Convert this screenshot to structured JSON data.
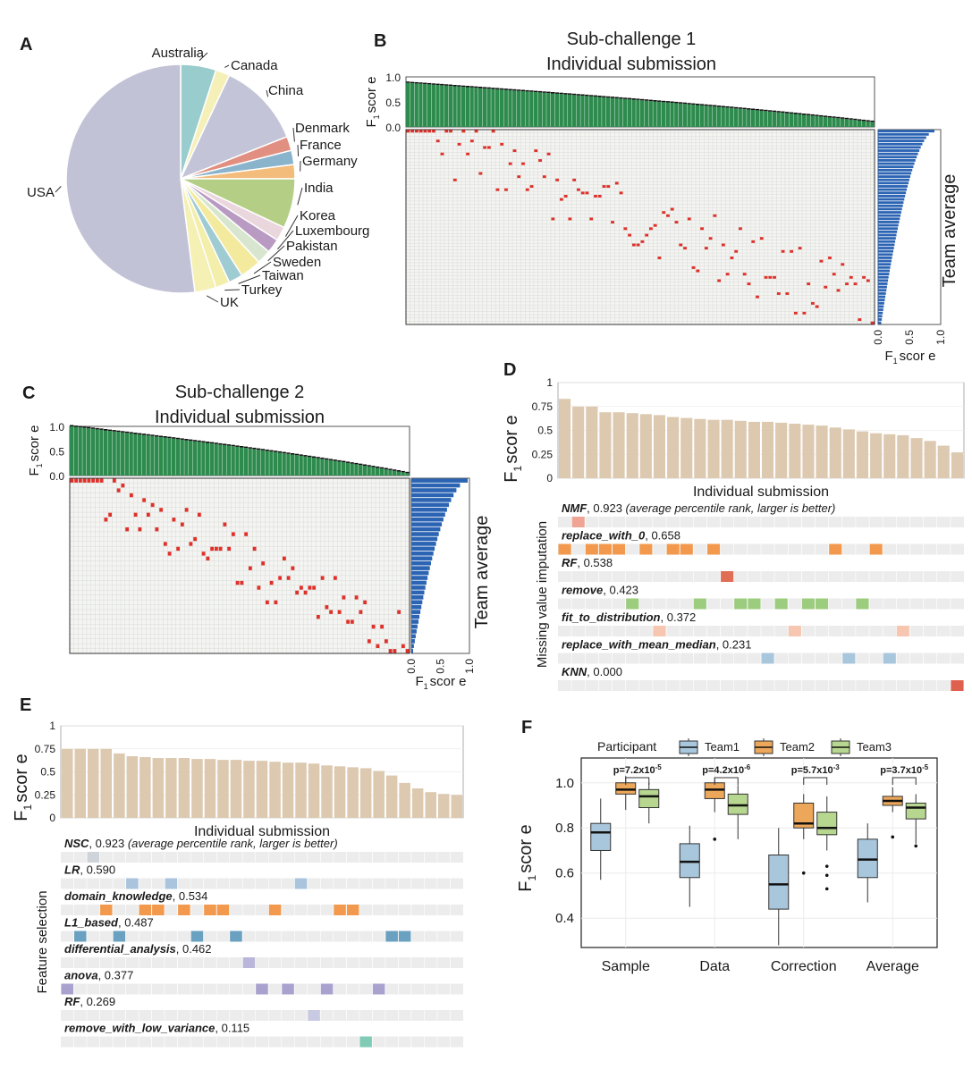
{
  "chart_data": [
    {
      "panel": "A",
      "type": "pie",
      "labels": [
        "Australia",
        "Canada",
        "China",
        "Denmark",
        "France",
        "Germany",
        "India",
        "Korea",
        "Luxembourg",
        "Pakistan",
        "Sweden",
        "Taiwan",
        "Turkey",
        "UK",
        "USA"
      ],
      "values": [
        5,
        2,
        12,
        2,
        2,
        2,
        7,
        2,
        2,
        2,
        3,
        2,
        2,
        3,
        52
      ],
      "colors": [
        "#99cccc",
        "#f5efb8",
        "#c3c4d7",
        "#e18f80",
        "#8ab3cc",
        "#f3bc7a",
        "#b4cf85",
        "#ead7dd",
        "#b89ac2",
        "#d8e6cf",
        "#f3ea9e",
        "#9fcbd2",
        "#f3eeaa",
        "#f5f0b4",
        "#c2c2d6"
      ]
    },
    {
      "panel": "B",
      "type": "heatmap",
      "title": [
        "Sub-challenge 1",
        "Individual submission"
      ],
      "ylabel": "F",
      "ylabel_sub": "1",
      "ylabel_rest": "scor e",
      "top_ticks": [
        "0.0",
        "0.5",
        "1.0"
      ],
      "side_ticks": [
        "0.0",
        "0.5",
        "1.0"
      ],
      "side_label": "Team average",
      "xlabel": "F",
      "xlabel_sub": "1",
      "xlabel_rest": "scor e",
      "n_submissions": 110,
      "n_teams": 60,
      "bar_range": [
        0.88,
        0.1
      ],
      "team_range": [
        0.9,
        0.05
      ],
      "bar_color": "#2e8b4e",
      "team_color": "#2c64b4",
      "dot_color": "#e0302a"
    },
    {
      "panel": "C",
      "type": "heatmap",
      "title": [
        "Sub-challenge 2",
        "Individual submission"
      ],
      "ylabel": "F",
      "ylabel_sub": "1",
      "ylabel_rest": "scor e",
      "top_ticks": [
        "0.0",
        "0.5",
        "1.0"
      ],
      "side_ticks": [
        "0.0",
        "0.5",
        "1.0"
      ],
      "side_label": "Team average",
      "xlabel": "F",
      "xlabel_sub": "1",
      "xlabel_rest": "scor e",
      "n_submissions": 80,
      "n_teams": 36,
      "bar_range": [
        1.0,
        0.05
      ],
      "team_range": [
        0.97,
        0.03
      ],
      "bar_color": "#2e8b4e",
      "team_color": "#2c64b4",
      "dot_color": "#e0302a"
    },
    {
      "panel": "D",
      "type": "bar",
      "ylabel": "F",
      "ylabel_sub": "1",
      "ylabel_rest": "scor e",
      "xlabel": "Individual submission",
      "ylim": [
        0,
        1
      ],
      "yticks": [
        "0",
        "0.25",
        "0.5",
        "0.75",
        "1"
      ],
      "values": [
        0.83,
        0.75,
        0.75,
        0.69,
        0.69,
        0.68,
        0.67,
        0.66,
        0.64,
        0.63,
        0.62,
        0.61,
        0.61,
        0.6,
        0.59,
        0.59,
        0.58,
        0.57,
        0.56,
        0.55,
        0.53,
        0.51,
        0.49,
        0.47,
        0.46,
        0.45,
        0.42,
        0.39,
        0.34,
        0.27
      ],
      "bar_color": "#dcc9b0",
      "group_label": "Missing value imputation",
      "methods": [
        {
          "name": "NMF",
          "score": "0.923",
          "note": " (average percentile rank, larger is better)",
          "color": "#f0a494",
          "cells": [
            1
          ]
        },
        {
          "name": "replace_with_0",
          "score": "0.658",
          "note": "",
          "color": "#f2994d",
          "cells": [
            0,
            2,
            3,
            4,
            6,
            8,
            9,
            11,
            20,
            23
          ]
        },
        {
          "name": "RF",
          "score": "0.538",
          "note": "",
          "color": "#e06e55",
          "cells": [
            12
          ]
        },
        {
          "name": "remove",
          "score": "0.423",
          "note": "",
          "color": "#9ccc7e",
          "cells": [
            5,
            10,
            13,
            14,
            16,
            18,
            19,
            22
          ]
        },
        {
          "name": "fit_to_distribution",
          "score": "0.372",
          "note": "",
          "color": "#f7c6b0",
          "cells": [
            7,
            17,
            25
          ]
        },
        {
          "name": "replace_with_mean_median",
          "score": "0.231",
          "note": "",
          "color": "#a9c7dc",
          "cells": [
            15,
            21,
            24
          ]
        },
        {
          "name": "KNN",
          "score": "0.000",
          "note": "",
          "color": "#e06050",
          "cells": [
            29
          ]
        }
      ]
    },
    {
      "panel": "E",
      "type": "bar",
      "ylabel": "F",
      "ylabel_sub": "1",
      "ylabel_rest": "scor e",
      "xlabel": "Individual submission",
      "ylim": [
        0,
        1
      ],
      "yticks": [
        "0",
        "0.25",
        "0.5",
        "0.75",
        "1"
      ],
      "values": [
        0.75,
        0.75,
        0.75,
        0.75,
        0.7,
        0.67,
        0.66,
        0.65,
        0.65,
        0.65,
        0.64,
        0.64,
        0.63,
        0.63,
        0.62,
        0.62,
        0.61,
        0.6,
        0.6,
        0.59,
        0.57,
        0.56,
        0.55,
        0.54,
        0.51,
        0.46,
        0.38,
        0.32,
        0.28,
        0.26,
        0.25
      ],
      "bar_color": "#dcc9b0",
      "group_label": "Feature selection",
      "methods": [
        {
          "name": "NSC",
          "score": "0.923",
          "note": " (average percentile rank, larger is better)",
          "color": "#cfd3da",
          "cells": [
            2
          ]
        },
        {
          "name": "LR",
          "score": "0.590",
          "note": "",
          "color": "#a9c4dc",
          "cells": [
            5,
            8,
            18
          ]
        },
        {
          "name": "domain_knowledge",
          "score": "0.534",
          "note": "",
          "color": "#f2994d",
          "cells": [
            3,
            6,
            7,
            9,
            11,
            12,
            16,
            21,
            22
          ]
        },
        {
          "name": "L1_based",
          "score": "0.487",
          "note": "",
          "color": "#6aa0c0",
          "cells": [
            1,
            4,
            10,
            13,
            25,
            26
          ]
        },
        {
          "name": "differential_analysis",
          "score": "0.462",
          "note": "",
          "color": "#b9b6d9",
          "cells": [
            14
          ]
        },
        {
          "name": "anova",
          "score": "0.377",
          "note": "",
          "color": "#a9a2cf",
          "cells": [
            0,
            15,
            17,
            20,
            24
          ]
        },
        {
          "name": "RF",
          "score": "0.269",
          "note": "",
          "color": "#c8c9e2",
          "cells": [
            19
          ]
        },
        {
          "name": "remove_with_low_variance",
          "score": "0.115",
          "note": "",
          "color": "#7fcbb5",
          "cells": [
            23
          ]
        }
      ]
    },
    {
      "panel": "F",
      "type": "boxplot",
      "ylabel": "F",
      "ylabel_sub": "1",
      "ylabel_rest": "scor e",
      "ylim": [
        0.27,
        1.11
      ],
      "yticks": [
        "0.4",
        "0.6",
        "0.8",
        "1.0"
      ],
      "legend_title": "Participant",
      "legend_position": "top",
      "categories": [
        "Sample",
        "Data",
        "Correction",
        "Average"
      ],
      "pvalues": [
        {
          "base": "p=7.2x10",
          "exp": "-5"
        },
        {
          "base": "p=4.2x10",
          "exp": "-6"
        },
        {
          "base": "p=5.7x10",
          "exp": "-3"
        },
        {
          "base": "p=3.7x10",
          "exp": "-5"
        }
      ],
      "series": [
        {
          "name": "Team1",
          "color": "#a9c7dc",
          "boxes": [
            {
              "min": 0.57,
              "q1": 0.7,
              "median": 0.78,
              "q3": 0.82,
              "max": 0.93,
              "outliers": []
            },
            {
              "min": 0.45,
              "q1": 0.58,
              "median": 0.65,
              "q3": 0.73,
              "max": 0.81,
              "outliers": []
            },
            {
              "min": 0.28,
              "q1": 0.44,
              "median": 0.55,
              "q3": 0.68,
              "max": 0.8,
              "outliers": []
            },
            {
              "min": 0.47,
              "q1": 0.58,
              "median": 0.66,
              "q3": 0.75,
              "max": 0.82,
              "outliers": []
            }
          ]
        },
        {
          "name": "Team2",
          "color": "#eda75a",
          "boxes": [
            {
              "min": 0.88,
              "q1": 0.95,
              "median": 0.97,
              "q3": 1.0,
              "max": 1.03,
              "outliers": []
            },
            {
              "min": 0.87,
              "q1": 0.93,
              "median": 0.97,
              "q3": 1.0,
              "max": 1.02,
              "outliers": [
                0.75
              ]
            },
            {
              "min": 0.75,
              "q1": 0.8,
              "median": 0.82,
              "q3": 0.91,
              "max": 0.95,
              "outliers": [
                0.6
              ]
            },
            {
              "min": 0.87,
              "q1": 0.9,
              "median": 0.92,
              "q3": 0.94,
              "max": 0.98,
              "outliers": [
                0.76
              ]
            }
          ]
        },
        {
          "name": "Team3",
          "color": "#b7d68f",
          "boxes": [
            {
              "min": 0.82,
              "q1": 0.89,
              "median": 0.94,
              "q3": 0.97,
              "max": 1.0,
              "outliers": []
            },
            {
              "min": 0.75,
              "q1": 0.86,
              "median": 0.9,
              "q3": 0.95,
              "max": 0.99,
              "outliers": []
            },
            {
              "min": 0.7,
              "q1": 0.77,
              "median": 0.8,
              "q3": 0.87,
              "max": 0.94,
              "outliers": [
                0.53,
                0.59,
                0.63
              ]
            },
            {
              "min": 0.73,
              "q1": 0.84,
              "median": 0.89,
              "q3": 0.91,
              "max": 0.95,
              "outliers": [
                0.72
              ]
            }
          ]
        }
      ]
    }
  ]
}
